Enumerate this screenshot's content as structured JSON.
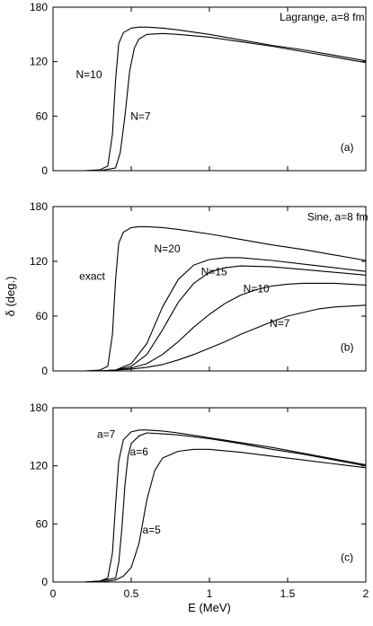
{
  "figure": {
    "xlabel": "E (MeV)",
    "ylabel": "δ (deg.)"
  },
  "chart_data": [
    {
      "type": "line",
      "xlim": [
        0,
        2
      ],
      "ylim": [
        0,
        180
      ],
      "x_ticks": [
        "",
        "",
        "",
        "",
        ""
      ],
      "y_ticks": [
        "0",
        "60",
        "120",
        "180"
      ],
      "series": [
        {
          "name": "N=10",
          "color": "#000000",
          "points": [
            [
              0.2,
              0
            ],
            [
              0.3,
              1
            ],
            [
              0.35,
              5
            ],
            [
              0.38,
              40
            ],
            [
              0.4,
              100
            ],
            [
              0.42,
              140
            ],
            [
              0.45,
              152
            ],
            [
              0.5,
              157
            ],
            [
              0.55,
              158
            ],
            [
              0.6,
              158
            ],
            [
              0.7,
              157
            ],
            [
              0.8,
              155
            ],
            [
              1.0,
              150
            ],
            [
              1.2,
              144
            ],
            [
              1.4,
              138
            ],
            [
              1.6,
              133
            ],
            [
              1.8,
              127
            ],
            [
              2.0,
              121
            ]
          ]
        },
        {
          "name": "N=7",
          "color": "#000000",
          "points": [
            [
              0.2,
              0
            ],
            [
              0.3,
              0
            ],
            [
              0.4,
              3
            ],
            [
              0.43,
              20
            ],
            [
              0.46,
              60
            ],
            [
              0.49,
              110
            ],
            [
              0.52,
              135
            ],
            [
              0.55,
              145
            ],
            [
              0.6,
              150
            ],
            [
              0.7,
              151
            ],
            [
              0.8,
              150
            ],
            [
              1.0,
              147
            ],
            [
              1.2,
              142
            ],
            [
              1.4,
              137
            ],
            [
              1.6,
              131
            ],
            [
              1.8,
              125
            ],
            [
              2.0,
              119
            ]
          ]
        }
      ],
      "annotations": [
        {
          "text": "Lagrange, a=8 fm",
          "x": 1.72,
          "y": 165
        },
        {
          "text": "N=10",
          "x": 0.23,
          "y": 102
        },
        {
          "text": "N=7",
          "x": 0.56,
          "y": 56
        },
        {
          "text": "(a)",
          "x": 1.88,
          "y": 22
        }
      ]
    },
    {
      "type": "line",
      "xlim": [
        0,
        2
      ],
      "ylim": [
        0,
        180
      ],
      "x_ticks": [
        "",
        "",
        "",
        "",
        ""
      ],
      "y_ticks": [
        "0",
        "60",
        "120",
        "180"
      ],
      "series": [
        {
          "name": "exact",
          "color": "#000000",
          "points": [
            [
              0.2,
              0
            ],
            [
              0.3,
              1
            ],
            [
              0.35,
              5
            ],
            [
              0.38,
              40
            ],
            [
              0.4,
              100
            ],
            [
              0.42,
              140
            ],
            [
              0.45,
              152
            ],
            [
              0.5,
              157
            ],
            [
              0.55,
              158
            ],
            [
              0.6,
              158
            ],
            [
              0.7,
              157
            ],
            [
              0.8,
              155
            ],
            [
              1.0,
              150
            ],
            [
              1.2,
              144
            ],
            [
              1.4,
              138
            ],
            [
              1.6,
              133
            ],
            [
              1.8,
              127
            ],
            [
              2.0,
              121
            ]
          ]
        },
        {
          "name": "N=20",
          "color": "#000000",
          "points": [
            [
              0.3,
              0
            ],
            [
              0.4,
              1
            ],
            [
              0.5,
              8
            ],
            [
              0.6,
              30
            ],
            [
              0.7,
              70
            ],
            [
              0.8,
              100
            ],
            [
              0.9,
              116
            ],
            [
              1.0,
              122
            ],
            [
              1.1,
              124
            ],
            [
              1.2,
              124
            ],
            [
              1.4,
              121
            ],
            [
              1.6,
              117
            ],
            [
              1.8,
              113
            ],
            [
              2.0,
              109
            ]
          ]
        },
        {
          "name": "N=15",
          "color": "#000000",
          "points": [
            [
              0.3,
              0
            ],
            [
              0.4,
              1
            ],
            [
              0.5,
              5
            ],
            [
              0.6,
              18
            ],
            [
              0.7,
              45
            ],
            [
              0.8,
              75
            ],
            [
              0.9,
              96
            ],
            [
              1.0,
              108
            ],
            [
              1.1,
              113
            ],
            [
              1.2,
              115
            ],
            [
              1.4,
              114
            ],
            [
              1.6,
              111
            ],
            [
              1.8,
              108
            ],
            [
              2.0,
              105
            ]
          ]
        },
        {
          "name": "N=10",
          "color": "#000000",
          "points": [
            [
              0.3,
              0
            ],
            [
              0.4,
              1
            ],
            [
              0.5,
              3
            ],
            [
              0.6,
              8
            ],
            [
              0.7,
              18
            ],
            [
              0.8,
              32
            ],
            [
              0.9,
              48
            ],
            [
              1.0,
              62
            ],
            [
              1.1,
              74
            ],
            [
              1.2,
              83
            ],
            [
              1.3,
              89
            ],
            [
              1.4,
              93
            ],
            [
              1.5,
              95
            ],
            [
              1.6,
              96
            ],
            [
              1.7,
              96
            ],
            [
              1.8,
              96
            ],
            [
              1.9,
              95
            ],
            [
              2.0,
              94
            ]
          ]
        },
        {
          "name": "N=7",
          "color": "#000000",
          "points": [
            [
              0.3,
              0
            ],
            [
              0.4,
              1
            ],
            [
              0.5,
              2
            ],
            [
              0.6,
              4
            ],
            [
              0.7,
              7
            ],
            [
              0.8,
              12
            ],
            [
              0.9,
              18
            ],
            [
              1.0,
              25
            ],
            [
              1.1,
              32
            ],
            [
              1.2,
              40
            ],
            [
              1.3,
              47
            ],
            [
              1.4,
              54
            ],
            [
              1.5,
              60
            ],
            [
              1.6,
              64
            ],
            [
              1.7,
              68
            ],
            [
              1.8,
              70
            ],
            [
              1.9,
              71
            ],
            [
              2.0,
              72
            ]
          ]
        }
      ],
      "annotations": [
        {
          "text": "Sine, a=8 fm",
          "x": 1.82,
          "y": 165
        },
        {
          "text": "exact",
          "x": 0.25,
          "y": 100
        },
        {
          "text": "N=20",
          "x": 0.73,
          "y": 130
        },
        {
          "text": "N=15",
          "x": 1.03,
          "y": 105
        },
        {
          "text": "N=10",
          "x": 1.3,
          "y": 86
        },
        {
          "text": "N=7",
          "x": 1.45,
          "y": 48
        },
        {
          "text": "(b)",
          "x": 1.88,
          "y": 22
        }
      ]
    },
    {
      "type": "line",
      "xlim": [
        0,
        2
      ],
      "ylim": [
        0,
        180
      ],
      "x_ticks": [
        "0",
        "0.5",
        "1",
        "1.5",
        "2"
      ],
      "y_ticks": [
        "0",
        "60",
        "120",
        "180"
      ],
      "series": [
        {
          "name": "a=7",
          "color": "#000000",
          "points": [
            [
              0.2,
              0
            ],
            [
              0.3,
              1
            ],
            [
              0.35,
              4
            ],
            [
              0.38,
              30
            ],
            [
              0.4,
              80
            ],
            [
              0.42,
              125
            ],
            [
              0.45,
              147
            ],
            [
              0.5,
              155
            ],
            [
              0.55,
              157
            ],
            [
              0.6,
              157
            ],
            [
              0.7,
              156
            ],
            [
              0.8,
              154
            ],
            [
              1.0,
              149
            ],
            [
              1.2,
              144
            ],
            [
              1.4,
              139
            ],
            [
              1.6,
              133
            ],
            [
              1.8,
              127
            ],
            [
              2.0,
              121
            ]
          ]
        },
        {
          "name": "a=6",
          "color": "#000000",
          "points": [
            [
              0.2,
              0
            ],
            [
              0.3,
              1
            ],
            [
              0.4,
              4
            ],
            [
              0.42,
              20
            ],
            [
              0.44,
              55
            ],
            [
              0.46,
              100
            ],
            [
              0.48,
              130
            ],
            [
              0.5,
              143
            ],
            [
              0.55,
              151
            ],
            [
              0.6,
              154
            ],
            [
              0.7,
              153
            ],
            [
              0.8,
              152
            ],
            [
              1.0,
              148
            ],
            [
              1.2,
              143
            ],
            [
              1.4,
              137
            ],
            [
              1.6,
              132
            ],
            [
              1.8,
              126
            ],
            [
              2.0,
              120
            ]
          ]
        },
        {
          "name": "a=5",
          "color": "#000000",
          "points": [
            [
              0.2,
              0
            ],
            [
              0.3,
              0
            ],
            [
              0.4,
              2
            ],
            [
              0.45,
              6
            ],
            [
              0.5,
              15
            ],
            [
              0.55,
              40
            ],
            [
              0.6,
              85
            ],
            [
              0.65,
              115
            ],
            [
              0.7,
              128
            ],
            [
              0.8,
              135
            ],
            [
              0.9,
              137
            ],
            [
              1.0,
              137
            ],
            [
              1.2,
              134
            ],
            [
              1.4,
              130
            ],
            [
              1.6,
              126
            ],
            [
              1.8,
              122
            ],
            [
              2.0,
              118
            ]
          ]
        }
      ],
      "annotations": [
        {
          "text": "a=7",
          "x": 0.34,
          "y": 149
        },
        {
          "text": "a=6",
          "x": 0.55,
          "y": 131
        },
        {
          "text": "a=5",
          "x": 0.63,
          "y": 50
        },
        {
          "text": "(c)",
          "x": 1.88,
          "y": 22
        }
      ]
    }
  ]
}
